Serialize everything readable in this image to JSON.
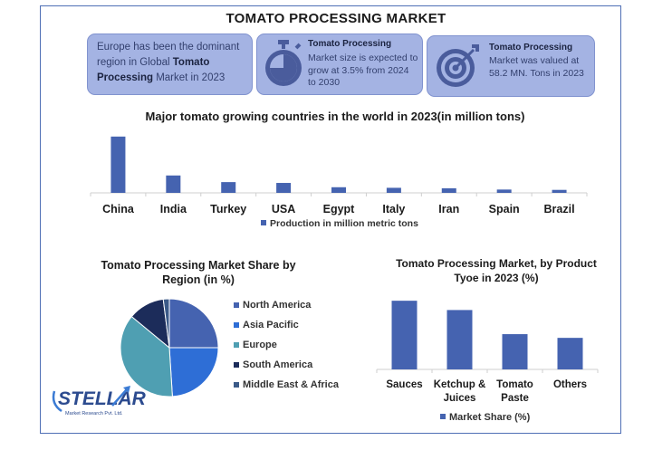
{
  "header": {
    "title": "TOMATO PROCESSING MARKET"
  },
  "cards": [
    {
      "pre": "Europe has been the dominant region in Global ",
      "bold": "Tomato Processing",
      "post": " Market in 2023",
      "icon": "none"
    },
    {
      "head": "Tomato Processing",
      "body": "Market size is expected to grow at 3.5% from 2024 to 2030",
      "icon": "stopwatch-icon"
    },
    {
      "head": "Tomato Processing",
      "body": "Market was valued at 58.2 MN. Tons in 2023",
      "icon": "target-icon"
    }
  ],
  "colors": {
    "bar": "#4563b0",
    "card": "#a4b3e3",
    "card_text": "#33406e"
  },
  "chart_data": [
    {
      "type": "bar",
      "title": "Major tomato growing countries in the world in 2023(in million tons)",
      "categories": [
        "China",
        "India",
        "Turkey",
        "USA",
        "Egypt",
        "Italy",
        "Iran",
        "Spain",
        "Brazil"
      ],
      "series": [
        {
          "name": "Production in million metric tons",
          "values": [
            68,
            21,
            13,
            12,
            6.8,
            6.1,
            5.5,
            4,
            3.6
          ]
        }
      ],
      "ylim": [
        0,
        70
      ],
      "legend": "bottom"
    },
    {
      "type": "pie",
      "title": "Tomato Processing Market Share by Region (in %)",
      "labels": [
        "North America",
        "Asia Pacific",
        "Europe",
        "South America",
        "Middle East & Africa"
      ],
      "values": [
        25,
        24,
        37,
        12,
        2
      ],
      "colors": [
        "#4563b0",
        "#2e6ed6",
        "#4f9fb2",
        "#1c2c5a",
        "#3b5a88"
      ],
      "legend": "right"
    },
    {
      "type": "bar",
      "title": "Tomato Processing Market, by Product Tyoe in 2023 (%)",
      "categories": [
        "Sauces",
        "Ketchup & Juices",
        "Tomato Paste",
        "Others"
      ],
      "category_lines": [
        [
          "Sauces"
        ],
        [
          "Ketchup &",
          "Juices"
        ],
        [
          "Tomato",
          "Paste"
        ],
        [
          "Others"
        ]
      ],
      "series": [
        {
          "name": "Market Share (%)",
          "values": [
            37,
            32,
            19,
            17
          ]
        }
      ],
      "ylim": [
        0,
        40
      ],
      "legend": "bottom"
    }
  ],
  "logo": {
    "name": "STELLAR",
    "tagline": "Market Research Pvt. Ltd."
  }
}
